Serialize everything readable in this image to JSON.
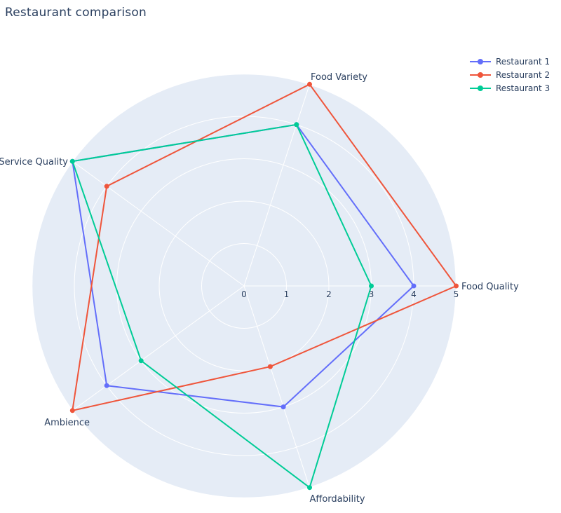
{
  "title": "Restaurant comparison",
  "chart_data": {
    "type": "radar",
    "categories": [
      "Food Quality",
      "Food Variety",
      "Service Quality",
      "Ambience",
      "Affordability"
    ],
    "series": [
      {
        "name": "Restaurant 1",
        "color": "#636EFA",
        "values": [
          4,
          4,
          5,
          4,
          3
        ]
      },
      {
        "name": "Restaurant 2",
        "color": "#EF553B",
        "values": [
          5,
          5,
          4,
          5,
          2
        ]
      },
      {
        "name": "Restaurant 3",
        "color": "#00CC96",
        "values": [
          3,
          4,
          5,
          3,
          5
        ]
      }
    ],
    "radial_axis": {
      "min": 0,
      "max": 5,
      "tick_labels": [
        "0",
        "1",
        "2",
        "3",
        "4",
        "5"
      ]
    },
    "angular_start_deg": 0,
    "direction": "counterclockwise",
    "grid": true,
    "legend_position": "top-right",
    "colors": {
      "polar_background": "#E5ECF6",
      "grid_line": "#FFFFFF",
      "text": "#2A3F5F",
      "page_background": "#FFFFFF"
    }
  }
}
